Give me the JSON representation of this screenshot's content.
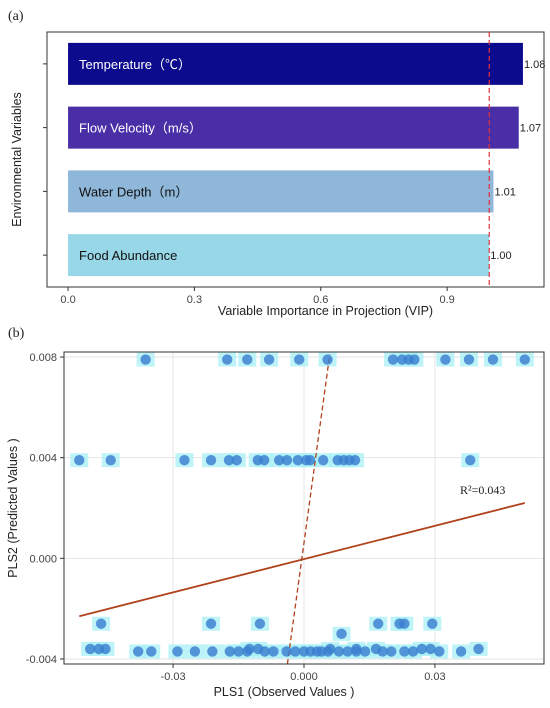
{
  "chart_data": [
    {
      "panel": "(a)",
      "type": "bar",
      "orientation": "horizontal",
      "categories": [
        "Temperature（℃）",
        "Flow Velocity（m/s）",
        "Water Depth（m）",
        "Food Abundance"
      ],
      "values": [
        1.08,
        1.07,
        1.01,
        1.0
      ],
      "value_labels": [
        "1.08",
        "1.07",
        "1.01",
        "1.00"
      ],
      "bar_colors": [
        "#0c0b8e",
        "#4a2ea6",
        "#8fb7d9",
        "#98d7e8"
      ],
      "label_colors": [
        "#ffffff",
        "#ffffff",
        "#111111",
        "#111111"
      ],
      "xlabel": "Variable Importance in Projection (VIP)",
      "ylabel": "Environmental Variables",
      "xlim": [
        -0.05,
        1.13
      ],
      "xticks": [
        0.0,
        0.3,
        0.6,
        0.9
      ],
      "xtick_labels": [
        "0.0",
        "0.3",
        "0.6",
        "0.9"
      ],
      "threshold": 1.0,
      "threshold_color": "#e0303a",
      "grid": false
    },
    {
      "panel": "(b)",
      "type": "scatter",
      "xlabel": "PLS1 (Observed  Values )",
      "ylabel": "PLS2 (Predicted   Values )",
      "xlim": [
        -0.055,
        0.055
      ],
      "ylim": [
        -0.0042,
        0.0082
      ],
      "xticks": [
        -0.03,
        0.0,
        0.03
      ],
      "xtick_labels": [
        "-0.03",
        "0.000",
        "0.03"
      ],
      "yticks": [
        -0.004,
        0.0,
        0.004,
        0.008
      ],
      "ytick_labels": [
        "-0.004",
        "0.000",
        "0.004",
        "0.008"
      ],
      "grid": true,
      "point_color": "#3b7fd0",
      "highlight_color": "#a8f0f5",
      "points": [
        [
          -0.0363,
          0.0079
        ],
        [
          -0.0176,
          0.0079
        ],
        [
          -0.013,
          0.0079
        ],
        [
          -0.008,
          0.0079
        ],
        [
          -0.0011,
          0.0079
        ],
        [
          0.0054,
          0.0079
        ],
        [
          0.0204,
          0.0079
        ],
        [
          0.0225,
          0.0079
        ],
        [
          0.024,
          0.0079
        ],
        [
          0.0253,
          0.0079
        ],
        [
          0.0324,
          0.0079
        ],
        [
          0.0378,
          0.0079
        ],
        [
          0.0433,
          0.0079
        ],
        [
          0.0506,
          0.0079
        ],
        [
          -0.0515,
          0.0039
        ],
        [
          -0.0443,
          0.0039
        ],
        [
          -0.0274,
          0.0039
        ],
        [
          -0.0213,
          0.0039
        ],
        [
          -0.0172,
          0.0039
        ],
        [
          -0.0154,
          0.0039
        ],
        [
          -0.0106,
          0.0039
        ],
        [
          -0.0091,
          0.0039
        ],
        [
          -0.0057,
          0.0039
        ],
        [
          -0.0039,
          0.0039
        ],
        [
          -0.0014,
          0.0039
        ],
        [
          0.0005,
          0.0039
        ],
        [
          0.0014,
          0.0039
        ],
        [
          0.0044,
          0.0039
        ],
        [
          0.0077,
          0.0039
        ],
        [
          0.0091,
          0.0039
        ],
        [
          0.0104,
          0.0039
        ],
        [
          0.0117,
          0.0039
        ],
        [
          0.0381,
          0.0039
        ],
        [
          -0.0465,
          -0.0026
        ],
        [
          -0.0213,
          -0.0026
        ],
        [
          -0.0101,
          -0.0026
        ],
        [
          0.017,
          -0.0026
        ],
        [
          0.0219,
          -0.0026
        ],
        [
          0.023,
          -0.0026
        ],
        [
          0.0294,
          -0.0026
        ],
        [
          0.0086,
          -0.003
        ],
        [
          -0.049,
          -0.0036
        ],
        [
          -0.047,
          -0.0036
        ],
        [
          -0.0455,
          -0.0036
        ],
        [
          -0.038,
          -0.0037
        ],
        [
          -0.035,
          -0.0037
        ],
        [
          -0.029,
          -0.0037
        ],
        [
          -0.025,
          -0.0037
        ],
        [
          -0.021,
          -0.0037
        ],
        [
          -0.017,
          -0.0037
        ],
        [
          -0.015,
          -0.0037
        ],
        [
          -0.013,
          -0.0037
        ],
        [
          -0.009,
          -0.0037
        ],
        [
          -0.007,
          -0.0037
        ],
        [
          -0.004,
          -0.0037
        ],
        [
          -0.002,
          -0.0037
        ],
        [
          0.0,
          -0.0037
        ],
        [
          0.0015,
          -0.0037
        ],
        [
          0.003,
          -0.0037
        ],
        [
          0.004,
          -0.0037
        ],
        [
          0.0055,
          -0.0037
        ],
        [
          0.008,
          -0.0037
        ],
        [
          0.01,
          -0.0037
        ],
        [
          0.012,
          -0.0037
        ],
        [
          0.014,
          -0.0037
        ],
        [
          0.018,
          -0.0037
        ],
        [
          0.02,
          -0.0037
        ],
        [
          0.023,
          -0.0037
        ],
        [
          0.025,
          -0.0037
        ],
        [
          0.031,
          -0.0037
        ],
        [
          0.036,
          -0.0037
        ],
        [
          -0.0125,
          -0.0036
        ],
        [
          -0.0105,
          -0.0036
        ],
        [
          0.006,
          -0.0036
        ],
        [
          0.012,
          -0.0036
        ],
        [
          0.0165,
          -0.0036
        ],
        [
          0.027,
          -0.0036
        ],
        [
          0.029,
          -0.0036
        ],
        [
          0.04,
          -0.0036
        ]
      ],
      "fit_line": {
        "x": [
          -0.0515,
          0.0506
        ],
        "y": [
          -0.0023,
          0.0022
        ],
        "color": "#b0421c"
      },
      "dashed_line": {
        "x": [
          -0.0038,
          0.0059
        ],
        "y": [
          -0.0042,
          0.0081
        ],
        "color": "#b0421c"
      },
      "annotation": "R²=0.043"
    }
  ]
}
